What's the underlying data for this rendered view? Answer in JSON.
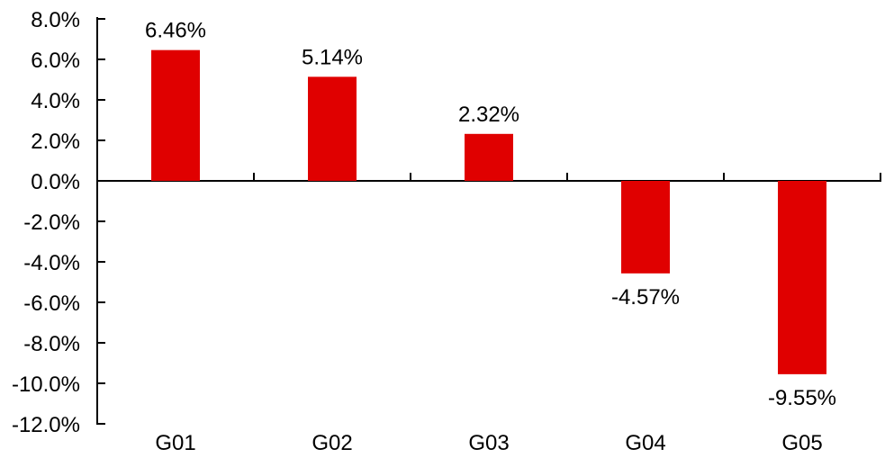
{
  "chart_data": {
    "type": "bar",
    "title": "",
    "xlabel": "",
    "ylabel": "",
    "categories": [
      "G01",
      "G02",
      "G03",
      "G04",
      "G05"
    ],
    "values": [
      6.46,
      5.14,
      2.32,
      -4.57,
      -9.55
    ],
    "data_labels": [
      "6.46%",
      "5.14%",
      "2.32%",
      "-4.57%",
      "-9.55%"
    ],
    "y_tick_labels": [
      "8.0%",
      "6.0%",
      "4.0%",
      "2.0%",
      "0.0%",
      "-2.0%",
      "-4.0%",
      "-6.0%",
      "-8.0%",
      "-10.0%",
      "-12.0%"
    ],
    "y_tick_values": [
      8,
      6,
      4,
      2,
      0,
      -2,
      -4,
      -6,
      -8,
      -10,
      -12
    ],
    "ylim": [
      -12,
      8
    ],
    "y_tick_step": 2,
    "grid": false,
    "legend": null,
    "bar_color": "#e00000",
    "axis_color": "#000000",
    "background_color": "#ffffff"
  }
}
